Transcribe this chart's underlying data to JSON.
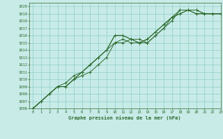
{
  "title": "Graphe pression niveau de la mer (hPa)",
  "xlim": [
    -0.5,
    23
  ],
  "ylim": [
    1006,
    1020.5
  ],
  "xticks": [
    0,
    1,
    2,
    3,
    4,
    5,
    6,
    7,
    8,
    9,
    10,
    11,
    12,
    13,
    14,
    15,
    16,
    17,
    18,
    19,
    20,
    21,
    22,
    23
  ],
  "yticks": [
    1006,
    1007,
    1008,
    1009,
    1010,
    1011,
    1012,
    1013,
    1014,
    1015,
    1016,
    1017,
    1018,
    1019,
    1020
  ],
  "background_color": "#c8ebe8",
  "grid_color": "#8ecdc8",
  "line_color": "#2d6a2d",
  "series": [
    [
      1006,
      1007,
      1008,
      1009,
      1009,
      1010,
      1011,
      1012,
      1013,
      1014,
      1016,
      1016,
      1015.5,
      1015.5,
      1015,
      1016,
      1017,
      1018,
      1019.5,
      1019.5,
      1019,
      1019,
      1019,
      1019
    ],
    [
      1006,
      1007,
      1008,
      1009,
      1009,
      1010,
      1010.5,
      1011,
      1012,
      1013,
      1015,
      1015.5,
      1015,
      1015,
      1015.5,
      1016.5,
      1017.5,
      1018.5,
      1019,
      1019.5,
      1019.5,
      1019,
      1019,
      1019
    ],
    [
      1006,
      1007,
      1008,
      1009,
      1009,
      1010,
      1011,
      1012,
      1013,
      1014,
      1015,
      1015,
      1015.5,
      1015,
      1015,
      1016,
      1017,
      1018.5,
      1019,
      1019.5,
      1019.5,
      1019,
      1019,
      1019
    ],
    [
      1006,
      1007,
      1008,
      1009,
      1009.5,
      1010.5,
      1011,
      1012,
      1013,
      1014,
      1016,
      1016,
      1015.5,
      1015,
      1015.5,
      1016.5,
      1017.5,
      1018.5,
      1019.5,
      1019.5,
      1019,
      1019,
      1019,
      1019
    ]
  ]
}
